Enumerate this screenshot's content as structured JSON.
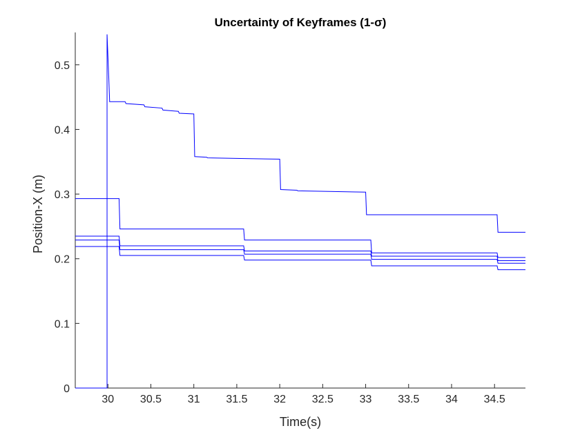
{
  "chart_data": {
    "type": "line",
    "title": "Uncertainty of Keyframes (1-σ)",
    "xlabel": "Time(s)",
    "ylabel": "Position-X (m)",
    "xlim": [
      29.62,
      34.86
    ],
    "ylim": [
      0,
      0.55
    ],
    "xticks": [
      30,
      30.5,
      31,
      31.5,
      32,
      32.5,
      33,
      33.5,
      34,
      34.5
    ],
    "xtick_labels": [
      "30",
      "30.5",
      "31",
      "31.5",
      "32",
      "32.5",
      "33",
      "33.5",
      "34",
      "34.5"
    ],
    "yticks": [
      0,
      0.1,
      0.2,
      0.3,
      0.4,
      0.5
    ],
    "ytick_labels": [
      "0",
      "0.1",
      "0.2",
      "0.3",
      "0.4",
      "0.5"
    ],
    "grid": false,
    "line_color": "#0000ff",
    "series": [
      {
        "x": [
          29.62,
          29.99,
          29.99,
          30.01,
          30.02,
          30.2,
          30.21,
          30.42,
          30.43,
          30.63,
          30.64,
          30.82,
          30.83,
          31.0,
          31.01,
          31.15,
          31.16,
          32.0,
          32.01,
          32.2,
          32.21,
          33.0,
          33.01,
          34.53,
          34.54,
          34.86
        ],
        "y": [
          0,
          0,
          0.547,
          0.48,
          0.443,
          0.443,
          0.44,
          0.438,
          0.435,
          0.433,
          0.43,
          0.428,
          0.425,
          0.424,
          0.358,
          0.357,
          0.356,
          0.354,
          0.307,
          0.306,
          0.305,
          0.303,
          0.268,
          0.268,
          0.241,
          0.241
        ]
      },
      {
        "x": [
          29.62,
          30.13,
          30.14,
          31.58,
          31.59,
          33.06,
          33.07,
          34.53,
          34.54,
          34.86
        ],
        "y": [
          0.293,
          0.293,
          0.246,
          0.246,
          0.229,
          0.229,
          0.209,
          0.209,
          0.202,
          0.202
        ]
      },
      {
        "x": [
          29.62,
          30.13,
          30.14,
          31.58,
          31.59,
          33.06,
          33.07,
          34.53,
          34.54,
          34.86
        ],
        "y": [
          0.235,
          0.235,
          0.22,
          0.22,
          0.212,
          0.212,
          0.204,
          0.204,
          0.197,
          0.197
        ]
      },
      {
        "x": [
          29.62,
          30.13,
          30.14,
          31.58,
          31.59,
          33.06,
          33.07,
          34.53,
          34.54,
          34.86
        ],
        "y": [
          0.229,
          0.229,
          0.214,
          0.214,
          0.207,
          0.207,
          0.199,
          0.199,
          0.193,
          0.193
        ]
      },
      {
        "x": [
          29.62,
          30.13,
          30.14,
          31.58,
          31.59,
          33.06,
          33.07,
          34.53,
          34.54,
          34.86
        ],
        "y": [
          0.219,
          0.219,
          0.205,
          0.205,
          0.198,
          0.198,
          0.189,
          0.189,
          0.183,
          0.183
        ]
      }
    ]
  }
}
